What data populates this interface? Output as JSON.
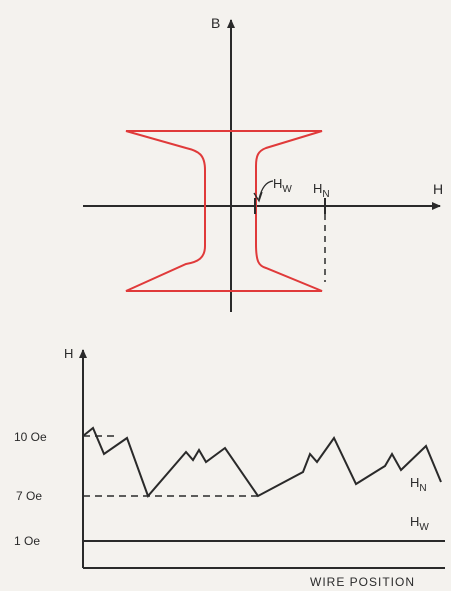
{
  "top_diagram": {
    "axis_y_label": "B",
    "axis_x_label": "H",
    "wall_field_subscript": "W",
    "nucleation_field_subscript": "N",
    "loop_color": "#e03a3a"
  },
  "bottom_diagram": {
    "axis_y_label": "H",
    "x_axis_caption": "WIRE POSITION",
    "y_tick_labels": [
      "10 Oe",
      "7 Oe",
      "1 Oe"
    ],
    "hn_subscript": "N",
    "hw_subscript": "W",
    "line_color": "#2a2a2a",
    "hn_profile": [
      10,
      10.4,
      9.1,
      9.9,
      7,
      9.2,
      8.8,
      9.3,
      8.7,
      9.4,
      7,
      8.2,
      9.1,
      8.7,
      9.9,
      7.6,
      8.5,
      9.1,
      8.3,
      9.5,
      7.7
    ]
  }
}
